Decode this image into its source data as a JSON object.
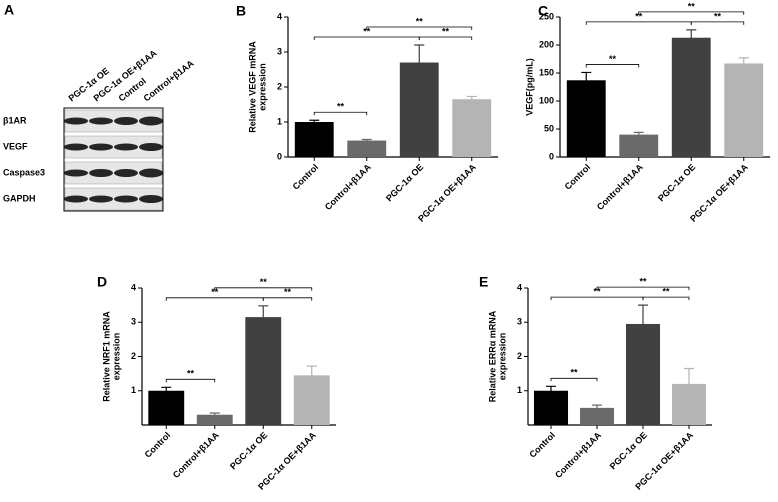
{
  "blot": {
    "label": "A",
    "lanes": [
      "PGC-1α OE",
      "PGC-1α OE+β1AA",
      "Control",
      "Control+β1AA"
    ],
    "rows": [
      "β1AR",
      "VEGF",
      "Caspase3",
      "GAPDH"
    ]
  },
  "chart_data": [
    {
      "type": "bar",
      "label": "B",
      "ylabel": [
        "Relative VEGF mRNA",
        "expression"
      ],
      "categories": [
        "Control",
        "Control+β1AA",
        "PGC-1α OE",
        "PGC-1α OE+β1AA"
      ],
      "values": [
        1.0,
        0.47,
        2.7,
        1.65
      ],
      "errors": [
        0.05,
        0.03,
        0.5,
        0.08
      ],
      "colors": [
        "#000000",
        "#6a6a6a",
        "#414141",
        "#b4b4b4"
      ],
      "ylim": [
        0,
        4
      ],
      "yticks": [
        0,
        1,
        2,
        3,
        4
      ],
      "significance": [
        "**",
        "**",
        "**",
        "**"
      ]
    },
    {
      "type": "bar",
      "label": "C",
      "ylabel": [
        "VEGF(pg/mL)"
      ],
      "categories": [
        "Control",
        "Control+β1AA",
        "PGC-1α OE",
        "PGC-1α OE+β1AA"
      ],
      "values": [
        137,
        40,
        213,
        167
      ],
      "errors": [
        14,
        4,
        14,
        10
      ],
      "colors": [
        "#000000",
        "#6a6a6a",
        "#414141",
        "#b4b4b4"
      ],
      "ylim": [
        0,
        250
      ],
      "yticks": [
        0,
        50,
        100,
        150,
        200,
        250
      ],
      "significance": [
        "**",
        "**",
        "**",
        "**"
      ]
    },
    {
      "type": "bar",
      "label": "D",
      "ylabel": [
        "Relative NRF1 mRNA",
        "expression"
      ],
      "categories": [
        "Control",
        "Control+β1AA",
        "PGC-1α OE",
        "PGC-1α OE+β1AA"
      ],
      "values": [
        1.0,
        0.3,
        3.15,
        1.45
      ],
      "errors": [
        0.1,
        0.05,
        0.33,
        0.27
      ],
      "colors": [
        "#000000",
        "#6a6a6a",
        "#414141",
        "#b4b4b4"
      ],
      "ylim": [
        0,
        4
      ],
      "yticks": [
        1,
        2,
        3,
        4
      ],
      "significance": [
        "**",
        "**",
        "**",
        "**"
      ]
    },
    {
      "type": "bar",
      "label": "E",
      "ylabel": [
        "Relative ERRα mRNA",
        "expression"
      ],
      "categories": [
        "Control",
        "Control+β1AA",
        "PGC-1α OE",
        "PGC-1α OE+β1AA"
      ],
      "values": [
        1.0,
        0.5,
        2.95,
        1.2
      ],
      "errors": [
        0.13,
        0.08,
        0.55,
        0.45
      ],
      "colors": [
        "#000000",
        "#6a6a6a",
        "#414141",
        "#b4b4b4"
      ],
      "ylim": [
        0,
        4
      ],
      "yticks": [
        1,
        2,
        3,
        4
      ],
      "significance": [
        "**",
        "**",
        "**",
        "**"
      ]
    }
  ]
}
